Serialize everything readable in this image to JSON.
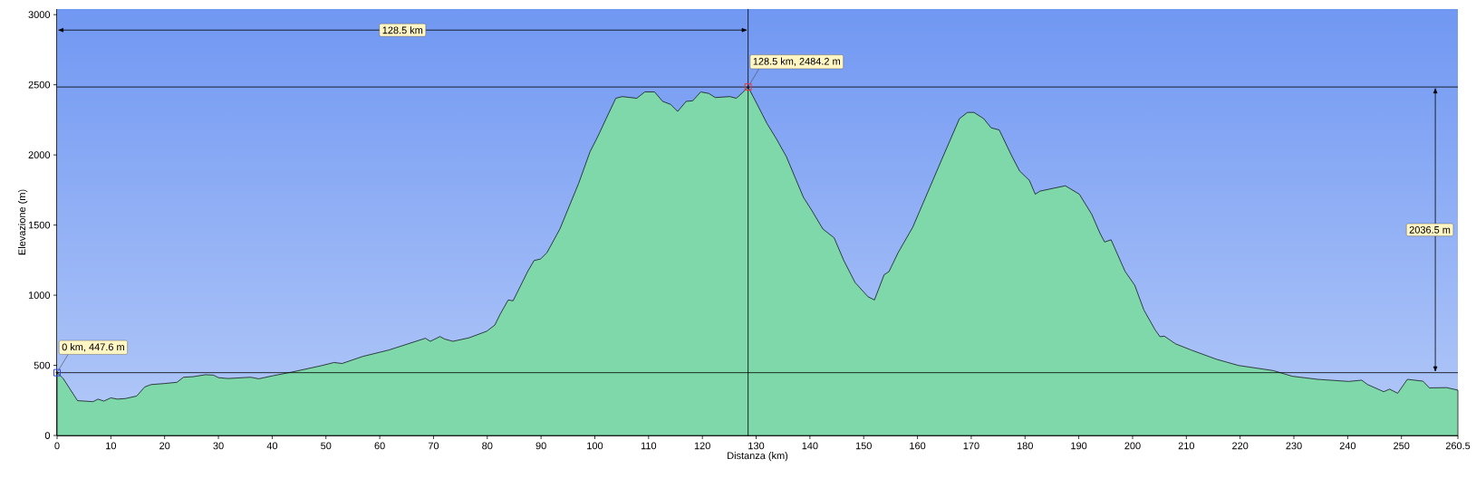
{
  "chart_data": {
    "type": "area",
    "xlabel": "Distanza   (km)",
    "ylabel": "Elevazione (m)",
    "xlim": [
      0,
      260.5
    ],
    "ylim": [
      0,
      3040
    ],
    "xticks": [
      0,
      10,
      20,
      30,
      40,
      50,
      60,
      70,
      80,
      90,
      100,
      110,
      120,
      130,
      140,
      150,
      160,
      170,
      180,
      190,
      200,
      210,
      220,
      230,
      240,
      250,
      260.5
    ],
    "yticks": [
      0,
      500,
      1000,
      1500,
      2000,
      2500,
      3000
    ],
    "grid": "y",
    "series": [
      {
        "color": "#7fd8aa",
        "x": [
          0,
          1.1,
          3.8,
          6.7,
          7.6,
          8.7,
          10,
          11.2,
          12.7,
          14.8,
          16.3,
          17.5,
          19.9,
          22.3,
          23.5,
          25.3,
          27.6,
          29.1,
          30,
          31.8,
          36,
          37.5,
          40.2,
          43.8,
          49.1,
          51.5,
          53,
          56.9,
          61.7,
          68.5,
          69.4,
          71.2,
          72.1,
          73.6,
          76.6,
          79.9,
          81.4,
          82.4,
          83.9,
          84.8,
          87.5,
          88.7,
          89.9,
          91.1,
          93.5,
          97,
          99.1,
          100.6,
          102.1,
          103.9,
          105.1,
          107.8,
          109.3,
          111.1,
          112.6,
          114.1,
          115.4,
          117,
          118.2,
          119.7,
          121.2,
          122.4,
          125.1,
          126.3,
          127.2,
          128.5,
          129.9,
          132,
          133.8,
          135.6,
          138.8,
          140.3,
          142.4,
          144.5,
          146.3,
          148.4,
          150.8,
          152,
          153.8,
          154.7,
          156.4,
          159.1,
          161.5,
          164.5,
          167.8,
          169.3,
          170.5,
          172.3,
          173.7,
          175.2,
          177.5,
          179,
          180.8,
          181.9,
          182.8,
          187.5,
          190.1,
          192.4,
          193.9,
          194.8,
          196,
          198.6,
          200.4,
          202.1,
          204.2,
          205.1,
          205.9,
          208,
          210.9,
          215.6,
          219.7,
          226.2,
          229.7,
          234.4,
          240.2,
          242.6,
          243.7,
          246.7,
          247.8,
          249.3,
          251.1,
          254,
          255.2,
          258.4,
          260.5
        ],
        "values": [
          447.6,
          408,
          248,
          241,
          259,
          245,
          268,
          259,
          263,
          281,
          346,
          363,
          370,
          379,
          415,
          419,
          433,
          430,
          412,
          406,
          415,
          404,
          426,
          453,
          497,
          520,
          513,
          564,
          609,
          693,
          671,
          705,
          687,
          671,
          696,
          743,
          787,
          865,
          966,
          960,
          1168,
          1247,
          1258,
          1303,
          1472,
          1798,
          2022,
          2135,
          2258,
          2404,
          2416,
          2404,
          2449,
          2449,
          2382,
          2360,
          2310,
          2382,
          2386,
          2449,
          2438,
          2409,
          2416,
          2404,
          2434,
          2484.2,
          2382,
          2225,
          2112,
          1989,
          1697,
          1607,
          1472,
          1409,
          1247,
          1090,
          989,
          966,
          1146,
          1168,
          1303,
          1483,
          1697,
          1966,
          2258,
          2303,
          2303,
          2259,
          2193,
          2178,
          1995,
          1885,
          1819,
          1720,
          1742,
          1780,
          1720,
          1577,
          1445,
          1379,
          1395,
          1170,
          1071,
          895,
          752,
          704,
          708,
          653,
          609,
          543,
          499,
          462,
          422,
          400,
          385,
          394,
          363,
          312,
          330,
          301,
          400,
          387,
          339,
          341,
          323
        ]
      }
    ],
    "ref_lines": [
      {
        "axis": "y",
        "value": 447.6
      },
      {
        "axis": "y",
        "value": 2484.2
      },
      {
        "axis": "x",
        "value": 128.5
      }
    ],
    "annotations": [
      {
        "text": "0 km, 447.6 m",
        "x": 0,
        "y": 447.6
      },
      {
        "text": "128.5 km, 2484.2 m",
        "x": 128.5,
        "y": 2484.2
      },
      "128.5 km",
      "2036.5 m"
    ]
  }
}
